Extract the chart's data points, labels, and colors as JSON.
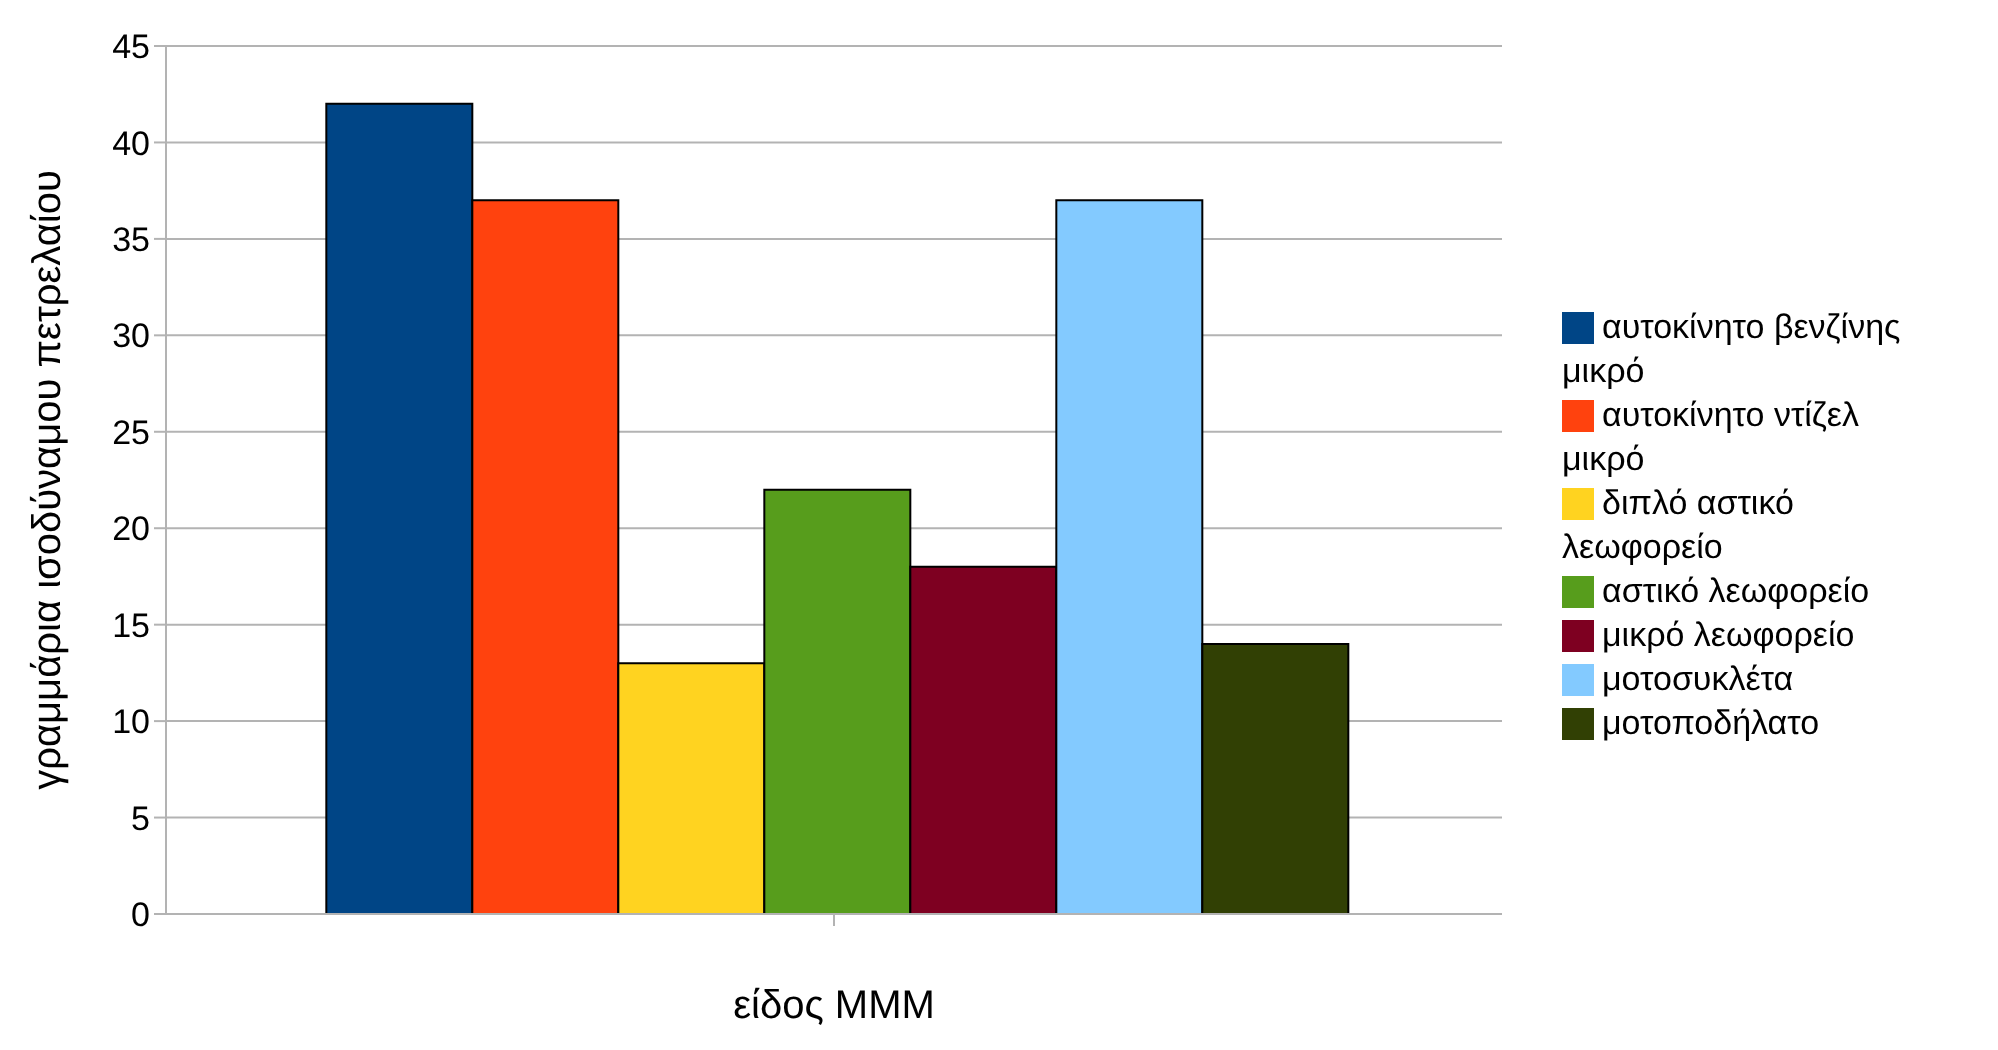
{
  "chart_data": {
    "type": "bar",
    "xlabel": "είδος ΜΜΜ",
    "ylabel": "γραμμάρια ισοδύναμου πετρελαίου",
    "categories": [
      null
    ],
    "series": [
      {
        "name": "αυτοκίνητο βενζίνης μικρό",
        "color": "#004586",
        "values": [
          42
        ]
      },
      {
        "name": "αυτοκίνητο ντίζελ μικρό",
        "color": "#ff420e",
        "values": [
          37
        ]
      },
      {
        "name": "διπλό αστικό λεωφορείο",
        "color": "#ffd320",
        "values": [
          13
        ]
      },
      {
        "name": "αστικό λεωφορείο",
        "color": "#579d1c",
        "values": [
          22
        ]
      },
      {
        "name": "μικρό λεωφορείο",
        "color": "#7e0021",
        "values": [
          18
        ]
      },
      {
        "name": "μοτοσυκλέτα",
        "color": "#83caff",
        "values": [
          37
        ]
      },
      {
        "name": "μοτοποδήλατο",
        "color": "#314004",
        "values": [
          14
        ]
      }
    ],
    "ylim": [
      0,
      45
    ],
    "yticks": [
      0,
      5,
      10,
      15,
      20,
      25,
      30,
      35,
      40,
      45
    ],
    "grid": "y",
    "legend": "right"
  }
}
